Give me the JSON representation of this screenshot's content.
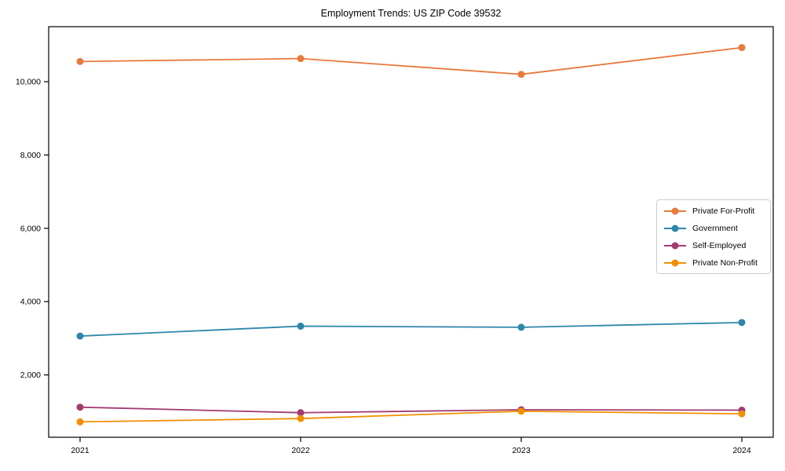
{
  "title": "Employment Trends: US ZIP Code 39532",
  "chart_data": {
    "type": "line",
    "title": "Employment Trends: US ZIP Code 39532",
    "xlabel": "",
    "ylabel": "",
    "x_labels": [
      "2021",
      "2022",
      "2023",
      "2024"
    ],
    "series": [
      {
        "name": "Private For-Profit",
        "color": "#E8793D",
        "values": [
          10550,
          10630,
          10200,
          10930
        ]
      },
      {
        "name": "Government",
        "color": "#2E86AB",
        "values": [
          3060,
          3330,
          3300,
          3430
        ]
      },
      {
        "name": "Self-Employed",
        "color": "#A23B72",
        "values": [
          1120,
          970,
          1050,
          1040
        ]
      },
      {
        "name": "Private Non-Profit",
        "color": "#F18F01",
        "values": [
          720,
          810,
          1010,
          940
        ]
      }
    ],
    "ylim": [
      300,
      11500
    ],
    "yticks": [
      2000,
      4000,
      6000,
      8000,
      10000
    ],
    "ytick_labels": [
      "2,000",
      "4,000",
      "6,000",
      "8,000",
      "10,000"
    ],
    "grid": false,
    "legend_position": "right-center",
    "axis_color": "#000000",
    "tick_label_color": "#000000",
    "marker": "circle",
    "marker_radius": 4.5,
    "line_width": 1.8
  }
}
